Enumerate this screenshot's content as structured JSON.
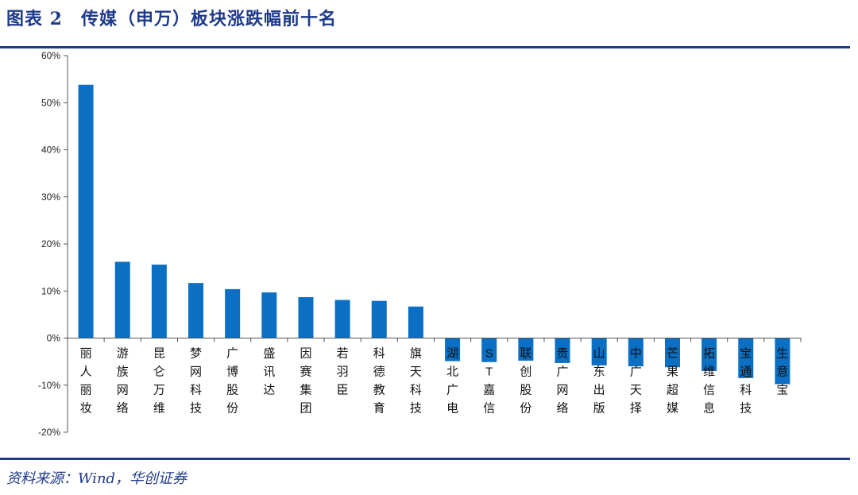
{
  "header": {
    "title": "图表 2　传媒（申万）板块涨跌幅前十名"
  },
  "footer": {
    "source": "资料来源：Wind，华创证券"
  },
  "colors": {
    "bar": "#0b6fc4",
    "title": "#1f3a8a",
    "axis": "#555555"
  },
  "chart_data": {
    "type": "bar",
    "categories": [
      "丽人丽妆",
      "游族网络",
      "昆仑万维",
      "梦网科技",
      "广博股份",
      "盛讯达",
      "因赛集团",
      "若羽臣",
      "科德教育",
      "旗天科技",
      "湖北广电",
      "ST嘉信",
      "联创股份",
      "贵广网络",
      "山东出版",
      "中广天择",
      "芒果超媒",
      "拓维信息",
      "宝通科技",
      "生意宝"
    ],
    "values": [
      53.8,
      16.2,
      15.6,
      11.7,
      10.4,
      9.7,
      8.7,
      8.1,
      7.9,
      6.7,
      -4.9,
      -5.1,
      -4.8,
      -5.3,
      -5.8,
      -6.0,
      -6.2,
      -7.0,
      -8.5,
      -9.8
    ],
    "ylim": [
      -20,
      60
    ],
    "yticks": [
      "-20%",
      "-10%",
      "0%",
      "10%",
      "20%",
      "30%",
      "40%",
      "50%",
      "60%"
    ],
    "ytick_values": [
      -20,
      -10,
      0,
      10,
      20,
      30,
      40,
      50,
      60
    ],
    "title": "",
    "xlabel": "",
    "ylabel": "",
    "grid": false,
    "legend": "none"
  }
}
